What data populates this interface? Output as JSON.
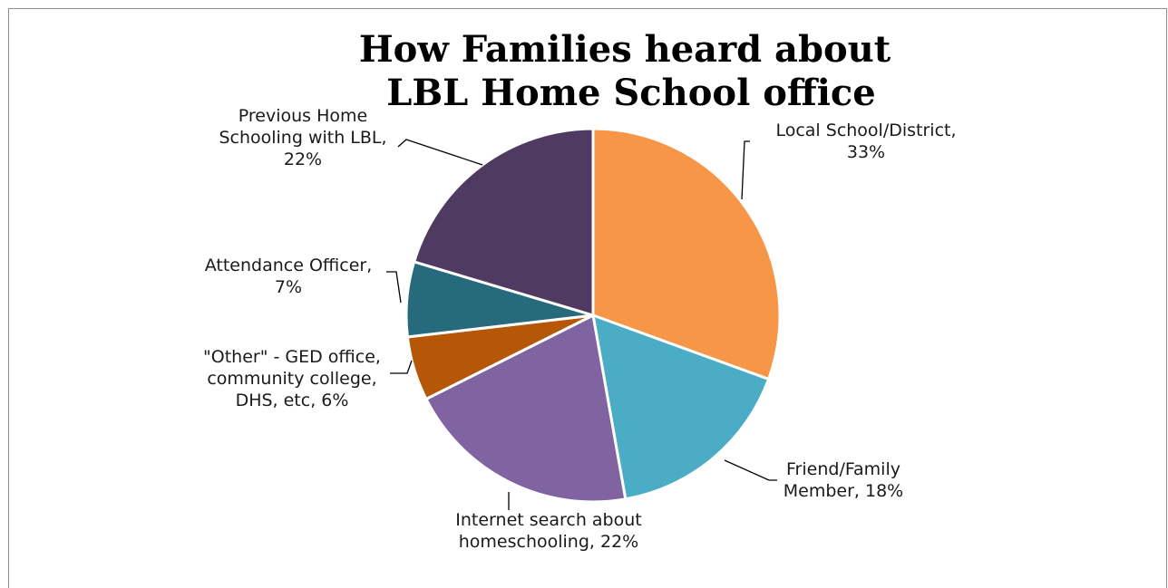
{
  "chart_data": {
    "type": "pie",
    "title_lines": [
      "How Families heard about",
      "LBL Home School office"
    ],
    "slices": [
      {
        "label_lines": [
          "Local School/District,",
          "33%"
        ],
        "category": "Local School/District",
        "value": 33,
        "color": "#F79646"
      },
      {
        "label_lines": [
          "Friend/Family",
          "Member, 18%"
        ],
        "category": "Friend/Family Member",
        "value": 18,
        "color": "#4BACC6"
      },
      {
        "label_lines": [
          "Internet search about",
          "homeschooling, 22%"
        ],
        "category": "Internet search about homeschooling",
        "value": 22,
        "color": "#8064A2"
      },
      {
        "label_lines": [
          "\"Other\" - GED office,",
          "community college,",
          "DHS, etc, 6%"
        ],
        "category": "\"Other\" - GED office, community college, DHS, etc",
        "value": 6,
        "color": "#B65708"
      },
      {
        "label_lines": [
          "Attendance Officer,",
          "7%"
        ],
        "category": "Attendance Officer",
        "value": 7,
        "color": "#276A7C"
      },
      {
        "label_lines": [
          "Previous Home",
          "Schooling with LBL,",
          "22%"
        ],
        "category": "Previous Home Schooling with LBL",
        "value": 22,
        "color": "#4F3B62"
      }
    ]
  }
}
